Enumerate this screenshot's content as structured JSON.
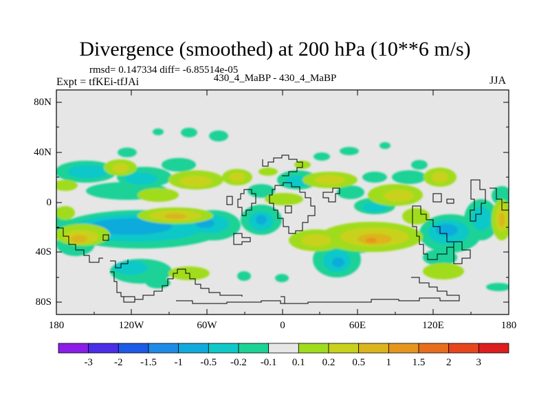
{
  "header": {
    "title": "Divergence (smoothed) at 200 hPa (10**6 m/s)",
    "rmsd_line": "rmsd= 0.147334 diff= -6.85514e-05",
    "expt_line": "Expt = tfKEi-tfJAi",
    "case_line": "430_4_MaBP - 430_4_MaBP",
    "season": "JJA"
  },
  "axes": {
    "y_ticks": [
      "80N",
      "40N",
      "0",
      "40S",
      "80S"
    ],
    "x_ticks": [
      "180",
      "120W",
      "60W",
      "0",
      "60E",
      "120E",
      "180"
    ]
  },
  "colorbar": {
    "labels": [
      "-3",
      "-2",
      "-1.5",
      "-1",
      "-0.5",
      "-0.2",
      "-0.1",
      "0.1",
      "0.2",
      "0.5",
      "1",
      "1.5",
      "2",
      "3"
    ],
    "colors": [
      "#8a1ee6",
      "#4b2ee6",
      "#1e5ae6",
      "#1e8ce6",
      "#10aadc",
      "#10c8c8",
      "#1ed296",
      "#e6e6e6",
      "#a0dc1e",
      "#c8d21e",
      "#dcb41e",
      "#e6961e",
      "#e66e1e",
      "#e6461e",
      "#dc1e1e"
    ]
  },
  "map": {
    "background_color": "#e6e6e6",
    "coastline_color": "#000000"
  }
}
